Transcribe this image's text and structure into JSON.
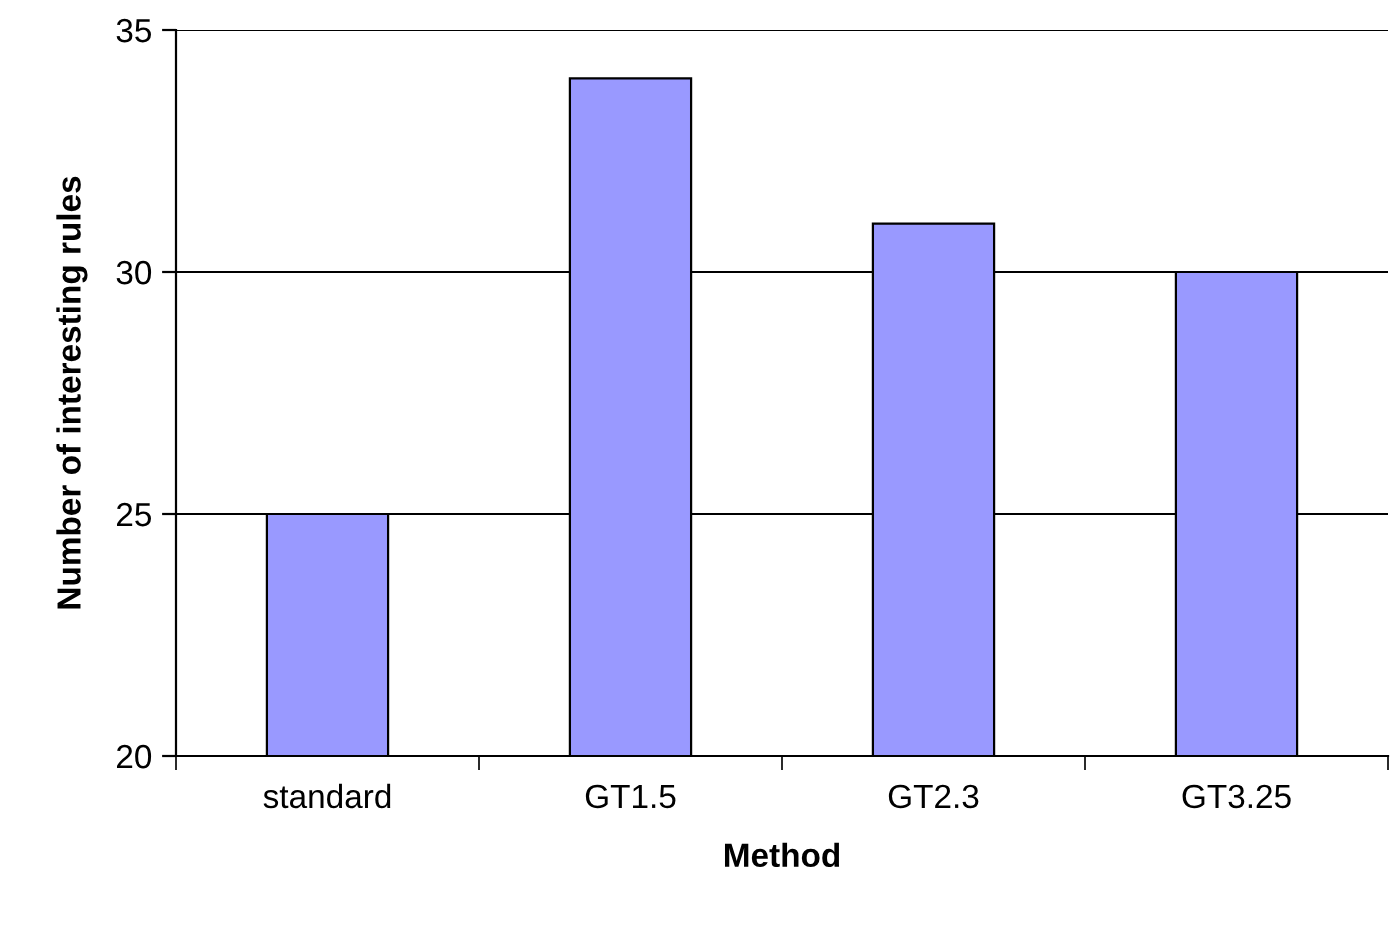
{
  "chart_data": {
    "type": "bar",
    "categories": [
      "standard",
      "GT1.5",
      "GT2.3",
      "GT3.25"
    ],
    "values": [
      25,
      34,
      31,
      30
    ],
    "color": "#9999ff",
    "xlabel": "Method",
    "ylabel": "Number of interesting rules",
    "ylim": [
      20,
      35
    ],
    "yticks": [
      20,
      25,
      30,
      35
    ],
    "grid": "y",
    "legend": false
  }
}
